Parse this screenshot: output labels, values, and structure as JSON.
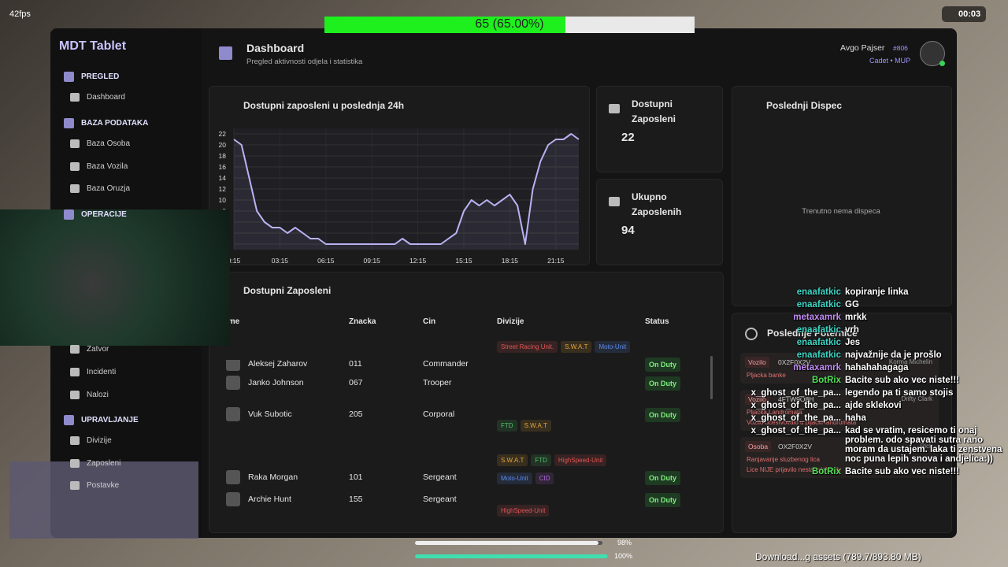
{
  "hud": {
    "fps": "42fps",
    "progress_label": "65 (65.00%)",
    "progress": 65,
    "timer": "00:03",
    "health": {
      "value": 98,
      "label": "98%"
    },
    "armor": {
      "value": 100,
      "label": "100%"
    },
    "download": "Download...g assets (789.7/893.80 MB)"
  },
  "sidebar": {
    "title": "MDT Tablet",
    "sections": [
      {
        "title": "PREGLED",
        "items": [
          "Dashboard"
        ]
      },
      {
        "title": "BAZA PODATAKA",
        "items": [
          "Baza Osoba",
          "Baza Vozila",
          "Baza Oruzja"
        ]
      },
      {
        "title": "OPERACIJE",
        "items": [
          "Zatvor",
          "Incidenti",
          "Nalozi"
        ]
      },
      {
        "title": "UPRAVLJANJE",
        "items": [
          "Divizije",
          "Zaposleni",
          "Postavke"
        ]
      }
    ]
  },
  "header": {
    "title": "Dashboard",
    "subtitle": "Pregled aktivnosti odjela i statistika",
    "user": "Avgo Pajser",
    "badge": "#806",
    "role": "Cadet • MUP"
  },
  "dashboard": {
    "chart": {
      "type": "line",
      "title": "Dostupni zaposleni u poslednja 24h",
      "categories": [
        "0:15",
        null,
        null,
        null,
        null,
        null,
        "03:15",
        null,
        null,
        null,
        null,
        null,
        "06:15",
        null,
        null,
        null,
        null,
        null,
        "09:15",
        null,
        null,
        null,
        null,
        null,
        "12:15",
        null,
        null,
        null,
        null,
        null,
        "15:15",
        null,
        null,
        null,
        null,
        null,
        "18:15",
        null,
        null,
        null,
        null,
        null,
        "21:15",
        null,
        null,
        null
      ],
      "values": [
        21,
        20,
        14,
        8,
        6,
        5,
        5,
        4,
        5,
        4,
        3,
        3,
        2,
        2,
        2,
        2,
        2,
        2,
        2,
        2,
        2,
        2,
        3,
        2,
        2,
        2,
        2,
        2,
        3,
        4,
        8,
        10,
        9,
        10,
        9,
        10,
        11,
        9,
        2,
        12,
        17,
        20,
        21,
        21,
        22,
        21
      ],
      "color": "#b9b2f2",
      "ylim": [
        1,
        23
      ],
      "yticks": [
        2,
        4,
        6,
        8,
        10,
        12,
        14,
        16,
        18,
        20,
        22
      ],
      "grid": true
    },
    "stats": [
      {
        "title": "Dostupni Zaposleni",
        "value": 22
      },
      {
        "title": "Ukupno Zaposlenih",
        "value": 94
      }
    ],
    "dispatch": {
      "title": "Poslednji Dispec",
      "empty": "Trenutno nema dispeca"
    },
    "warrants": {
      "title": "Poslednje Poternice",
      "items": [
        {
          "type": "Vozilo",
          "plate": "0X2F0X2V",
          "owner": "Korma Michelin",
          "lines": [
            "Pljacka banke"
          ]
        },
        {
          "type": "Vozilo",
          "plate": "4FTW9O8H",
          "owner": "Drifty Clark",
          "lines": [
            "Pljacka Landromata",
            "Vozilo ucestvovalo u pljacki landromata"
          ]
        },
        {
          "type": "Osoba",
          "plate": "OX2F0X2V",
          "owner": "Rick",
          "lines": [
            "Ranjavanje sluzbenog lica",
            "Lice NIJE prijavilo nestanak/kradu"
          ]
        }
      ]
    },
    "employees": {
      "title": "Dostupni Zaposleni",
      "columns": [
        "Ime",
        "Znacka",
        "Cin",
        "Divizije",
        "Status"
      ],
      "rows": [
        {
          "name": "Aleksej Zaharov",
          "badge": "011",
          "rank": "Commander",
          "divisions": [
            {
              "name": "Street Racing Unit.",
              "color": "#e05555"
            },
            {
              "name": "S.W.A.T",
              "color": "#e3a53a"
            },
            {
              "name": "Moto-Unit",
              "color": "#5b8cf0"
            }
          ],
          "status": "On Duty"
        },
        {
          "name": "Janko Johnson",
          "badge": "067",
          "rank": "Trooper",
          "divisions": [],
          "status": "On Duty"
        },
        {
          "name": "Vuk Subotic",
          "badge": "205",
          "rank": "Corporal",
          "divisions": [
            {
              "name": "FTD",
              "color": "#4fc46a"
            },
            {
              "name": "S.W.A.T",
              "color": "#e3a53a"
            }
          ],
          "status": "On Duty"
        },
        {
          "name": "Raka Morgan",
          "badge": "101",
          "rank": "Sergeant",
          "divisions": [
            {
              "name": "S.W.A.T",
              "color": "#e3a53a"
            },
            {
              "name": "FTD",
              "color": "#4fc46a"
            },
            {
              "name": "HighSpeed-Unit",
              "color": "#e05555"
            },
            {
              "name": "Moto-Unit",
              "color": "#5b8cf0"
            },
            {
              "name": "CID",
              "color": "#b06ae0"
            }
          ],
          "status": "On Duty"
        },
        {
          "name": "Archie Hunt",
          "badge": "155",
          "rank": "Sergeant",
          "divisions": [
            {
              "name": "HighSpeed-Unit",
              "color": "#e05555"
            }
          ],
          "status": "On Duty"
        }
      ]
    }
  },
  "chat": [
    {
      "user": "enaafatkic",
      "color": "#3fd6c6",
      "text": "kopiranje linka"
    },
    {
      "user": "enaafatkic",
      "color": "#3fd6c6",
      "text": "GG"
    },
    {
      "user": "metaxamrk",
      "color": "#c28df5",
      "text": "mrkk"
    },
    {
      "user": "enaafatkic",
      "color": "#3fd6c6",
      "text": "vrh"
    },
    {
      "user": "enaafatkic",
      "color": "#3fd6c6",
      "text": "Jes"
    },
    {
      "user": "enaafatkic",
      "color": "#3fd6c6",
      "text": "najvažnije da je prošlo"
    },
    {
      "user": "metaxamrk",
      "color": "#c28df5",
      "text": "hahahahagaga"
    },
    {
      "user": "BotRix",
      "color": "#56e35a",
      "text": "Bacite sub ako vec niste!!!"
    },
    {
      "user": "x_ghost_of_the_pa...",
      "color": "#ffffff",
      "text": "legendo pa ti samo stojis"
    },
    {
      "user": "x_ghost_of_the_pa...",
      "color": "#ffffff",
      "text": "ajde sklekovi"
    },
    {
      "user": "x_ghost_of_the_pa...",
      "color": "#ffffff",
      "text": "haha"
    },
    {
      "user": "x_ghost_of_the_pa...",
      "color": "#ffffff",
      "text": "kad se vratim, resicemo ti onaj problem. odo spavati sutra rano moram da ustajem. laka ti zenstvena noc puna lepih snova i andjelica:))"
    },
    {
      "user": "BotRix",
      "color": "#56e35a",
      "text": "Bacite sub ako vec niste!!!"
    }
  ]
}
